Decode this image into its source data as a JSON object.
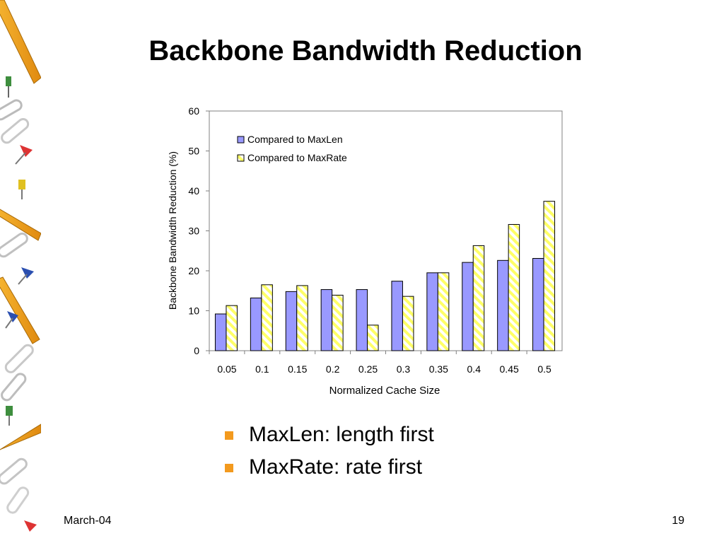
{
  "slide": {
    "title": "Backbone Bandwidth Reduction",
    "bullets": [
      "MaxLen: length first",
      "MaxRate: rate first"
    ],
    "footer_date": "March-04",
    "page_number": "19",
    "bullet_color": "#f39a1e"
  },
  "chart_data": {
    "type": "bar",
    "title": "",
    "xlabel": "Normalized Cache Size",
    "ylabel": "Backbone Bandwidth Reduction (%)",
    "ylim": [
      0,
      60
    ],
    "yticks": [
      "0",
      "10",
      "20",
      "30",
      "40",
      "50",
      "60"
    ],
    "categories": [
      "0.05",
      "0.1",
      "0.15",
      "0.2",
      "0.25",
      "0.3",
      "0.35",
      "0.4",
      "0.45",
      "0.5"
    ],
    "series": [
      {
        "name": "Compared to MaxLen",
        "color": "#9999ff",
        "pattern": "solid",
        "values": [
          9.2,
          13.2,
          14.8,
          15.3,
          15.3,
          17.4,
          19.5,
          22.1,
          22.6,
          23.1
        ]
      },
      {
        "name": "Compared to MaxRate",
        "color": "#ffff66",
        "pattern": "diagonal-stripes",
        "values": [
          11.3,
          16.5,
          16.3,
          13.9,
          6.4,
          13.6,
          19.5,
          26.3,
          31.6,
          37.4
        ]
      }
    ],
    "legend_position": "top-left",
    "grid": false
  }
}
